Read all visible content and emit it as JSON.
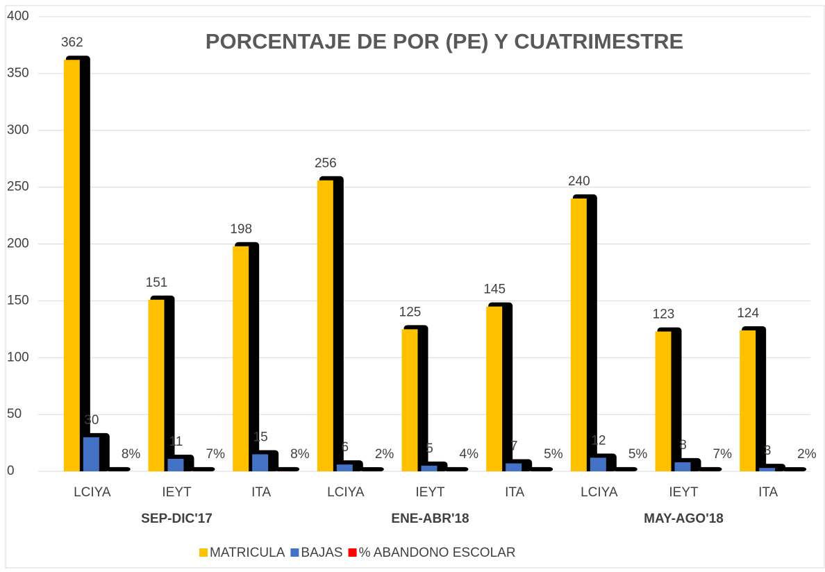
{
  "chart_data": {
    "type": "bar",
    "title": "PORCENTAJE DE  POR (PE) Y CUATRIMESTRE",
    "categories": [
      "LCIYA",
      "IEYT",
      "ITA",
      "LCIYA",
      "IEYT",
      "ITA",
      "LCIYA",
      "IEYT",
      "ITA"
    ],
    "groups": [
      "SEP-DIC'17",
      "ENE-ABR'18",
      "MAY-AGO'18"
    ],
    "series": [
      {
        "name": "MATRICULA",
        "color": "#ffc000",
        "values": [
          362,
          151,
          198,
          256,
          125,
          145,
          240,
          123,
          124
        ]
      },
      {
        "name": "BAJAS",
        "color": "#4472c4",
        "values": [
          30,
          11,
          15,
          6,
          5,
          7,
          12,
          8,
          3
        ]
      },
      {
        "name": "% ABANDONO ESCOLAR",
        "color": "#ff0000",
        "values": [
          0.08,
          0.07,
          0.08,
          0.02,
          0.04,
          0.05,
          0.05,
          0.07,
          0.02
        ],
        "value_labels": [
          "8%",
          "7%",
          "8%",
          "2%",
          "4%",
          "5%",
          "5%",
          "7%",
          "2%"
        ]
      }
    ],
    "ylim": [
      0,
      400
    ],
    "yticks": [
      0,
      50,
      100,
      150,
      200,
      250,
      300,
      350,
      400
    ],
    "grid": true,
    "legend": "bottom"
  }
}
